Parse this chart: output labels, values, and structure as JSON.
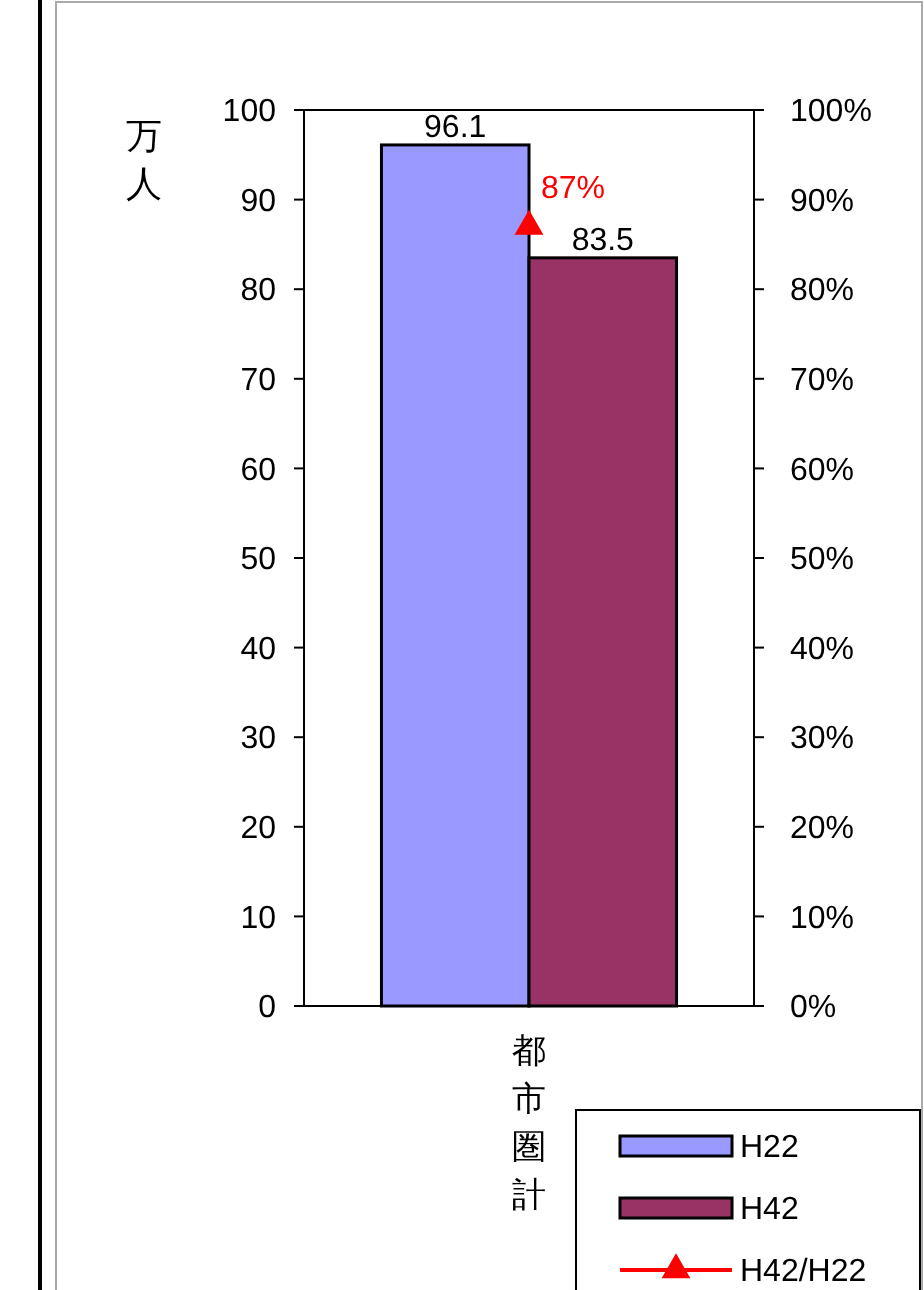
{
  "chart_data": {
    "type": "bar",
    "ylabel": "万人",
    "categories": [
      "都市圏計"
    ],
    "series": [
      {
        "name": "H22",
        "color": "#9999ff",
        "values": [
          96.1
        ],
        "value_labels": [
          "96.1"
        ]
      },
      {
        "name": "H42",
        "color": "#993366",
        "values": [
          83.5
        ],
        "value_labels": [
          "83.5"
        ]
      },
      {
        "name": "H42/H22",
        "type": "line",
        "axis": "y2",
        "color": "#ff0000",
        "marker": "triangle",
        "values": [
          87
        ],
        "value_labels": [
          "87%"
        ]
      }
    ],
    "ylim": [
      0,
      100
    ],
    "yticks": [
      0,
      10,
      20,
      30,
      40,
      50,
      60,
      70,
      80,
      90,
      100
    ],
    "y2lim": [
      0,
      100
    ],
    "y2ticks": [
      {
        "value": 0,
        "label": "0%"
      },
      {
        "value": 10,
        "label": "10%"
      },
      {
        "value": 20,
        "label": "20%"
      },
      {
        "value": 30,
        "label": "30%"
      },
      {
        "value": 40,
        "label": "40%"
      },
      {
        "value": 50,
        "label": "50%"
      },
      {
        "value": 60,
        "label": "60%"
      },
      {
        "value": 70,
        "label": "70%"
      },
      {
        "value": 80,
        "label": "80%"
      },
      {
        "value": 90,
        "label": "90%"
      },
      {
        "value": 100,
        "label": "100%"
      }
    ],
    "grid": false,
    "legend": "bottom right"
  }
}
